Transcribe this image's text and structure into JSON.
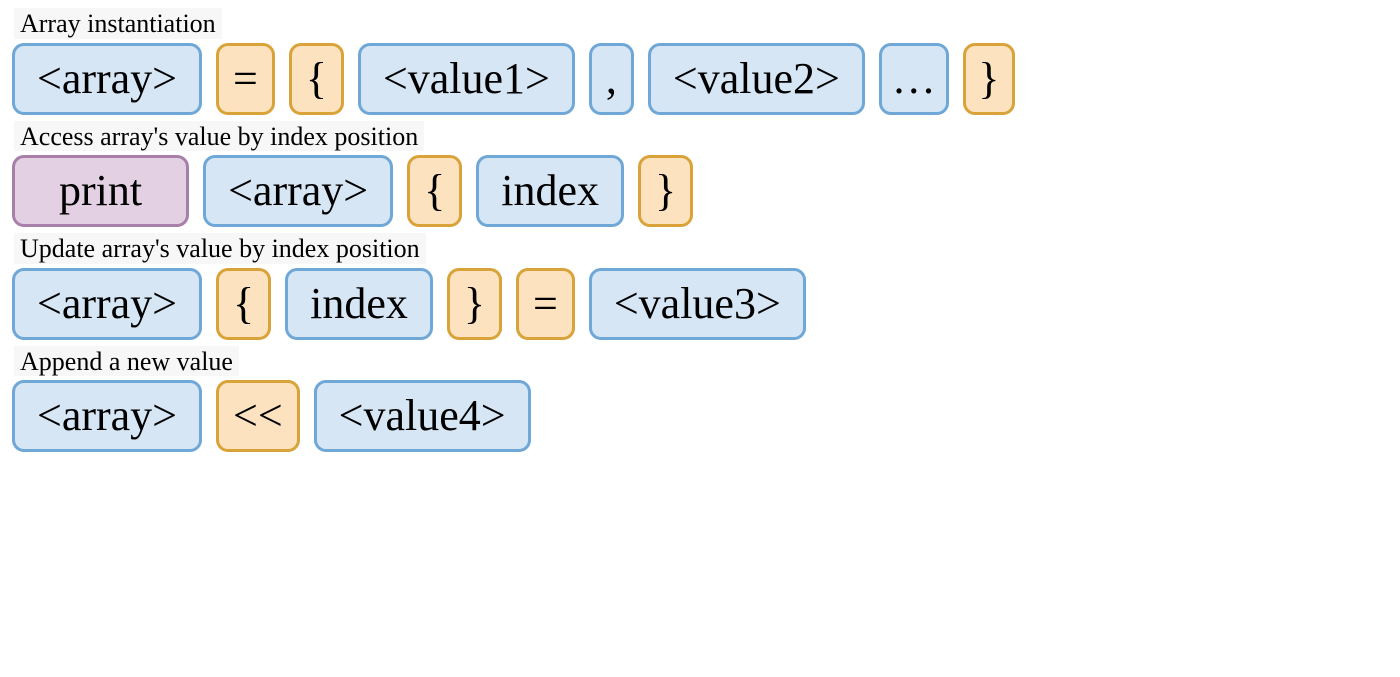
{
  "colors": {
    "blue_fill": "#d6e6f5",
    "blue_border": "#6fa7d6",
    "orange_fill": "#fde2bf",
    "orange_border": "#d9a33a",
    "purple_fill": "#e3d1e3",
    "purple_border": "#a87fa8",
    "text": "#000000",
    "background": "#ffffff",
    "caption_bg": "#f7f7f7"
  },
  "typography": {
    "caption_fontsize": 26,
    "token_fontsize": 44,
    "font_family": "Comic Sans MS"
  },
  "layout": {
    "border_radius": 12,
    "border_width": 3,
    "gap": 14
  },
  "sections": [
    {
      "caption": "Array instantiation",
      "tokens": [
        {
          "text": "<array>",
          "style": "blue"
        },
        {
          "text": "=",
          "style": "orange",
          "tight": true
        },
        {
          "text": "{",
          "style": "orange",
          "tight": true
        },
        {
          "text": "<value1>",
          "style": "blue"
        },
        {
          "text": ",",
          "style": "blue",
          "tight": true
        },
        {
          "text": "<value2>",
          "style": "blue"
        },
        {
          "text": "…",
          "style": "blue",
          "narrow": true
        },
        {
          "text": "}",
          "style": "orange",
          "narrow": true
        }
      ]
    },
    {
      "caption": "Access array's value by index position",
      "tokens": [
        {
          "text": "print",
          "style": "purple",
          "wide": true
        },
        {
          "text": "<array>",
          "style": "blue"
        },
        {
          "text": "{",
          "style": "orange",
          "tight": true
        },
        {
          "text": "index",
          "style": "blue"
        },
        {
          "text": "}",
          "style": "orange",
          "tight": true
        }
      ]
    },
    {
      "caption": "Update array's value by index position",
      "tokens": [
        {
          "text": "<array>",
          "style": "blue"
        },
        {
          "text": "{",
          "style": "orange",
          "tight": true
        },
        {
          "text": "index",
          "style": "blue"
        },
        {
          "text": "}",
          "style": "orange",
          "tight": true
        },
        {
          "text": "=",
          "style": "orange",
          "tight": true
        },
        {
          "text": "<value3>",
          "style": "blue"
        }
      ]
    },
    {
      "caption": "Append a new value",
      "tokens": [
        {
          "text": "<array>",
          "style": "blue"
        },
        {
          "text": "<<",
          "style": "orange",
          "tight": true
        },
        {
          "text": "<value4>",
          "style": "blue"
        }
      ]
    }
  ]
}
